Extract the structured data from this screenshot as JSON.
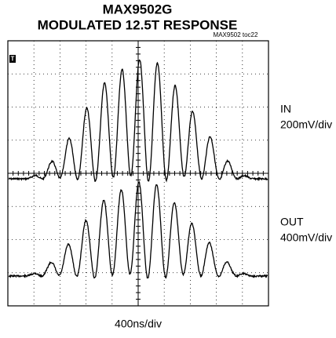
{
  "title": "MAX9502G",
  "subtitle": "MODULATED 12.5T RESPONSE",
  "figure_id": "MAX9502 toc22",
  "traces": [
    {
      "name": "IN",
      "scale": "200mV/div"
    },
    {
      "name": "OUT",
      "scale": "400mV/div"
    }
  ],
  "time_scale": "400ns/div",
  "trigger_marker": "T"
}
